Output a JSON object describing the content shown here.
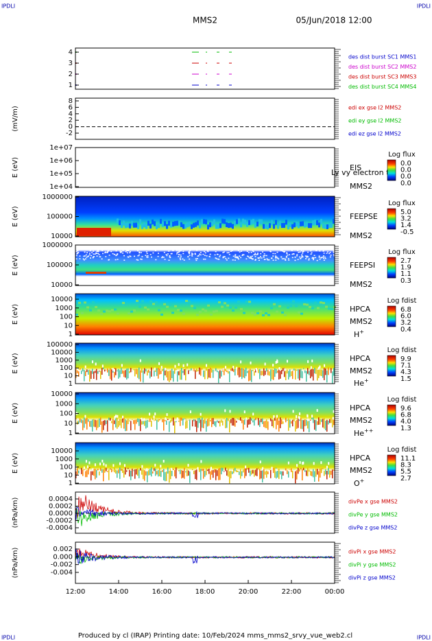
{
  "header": {
    "corner_left": "IPDLI",
    "corner_right": "IPDLI",
    "spacecraft": "MMS2",
    "datetime": "05/Jun/2018 12:00"
  },
  "panels": [
    {
      "yticks": [
        "4",
        "3",
        "2",
        "1"
      ],
      "legend": [
        {
          "text": "des dist burst SC1 MMS1",
          "color": "#0000cc"
        },
        {
          "text": "des dist burst SC2 MMS2",
          "color": "#cc00cc"
        },
        {
          "text": "des dist burst SC3 MMS3",
          "color": "#cc0000"
        },
        {
          "text": "des dist burst SC4 MMS4",
          "color": "#00bb00"
        }
      ]
    },
    {
      "ylabel": "(mV/m)",
      "yticks": [
        "8",
        "6",
        "4",
        "2",
        "0",
        "-2"
      ],
      "legend": [
        {
          "text": "edi ex gse l2 MMS2",
          "color": "#cc0000"
        },
        {
          "text": "edi ey gse l2 MMS2",
          "color": "#00bb00"
        },
        {
          "text": "edi ez gse l2 MMS2",
          "color": "#0000cc"
        }
      ]
    },
    {
      "ylabel": "E (eV)",
      "yticks": [
        "1e+07",
        "1e+06",
        "1e+05",
        "1e+04"
      ],
      "labels": [
        "EIS",
        "MMS2"
      ],
      "overlay": "Ly vy electron to",
      "colorbar": {
        "title": "Log flux",
        "ticks": [
          "0.0",
          "0.0",
          "0.0",
          "0.0"
        ]
      }
    },
    {
      "ylabel": "E (eV)",
      "yticks": [
        "1000000",
        "100000",
        "10000"
      ],
      "labels": [
        "FEEPSE",
        "MMS2"
      ],
      "colorbar": {
        "title": "Log flux",
        "ticks": [
          "5.0",
          "3.2",
          "1.4",
          "-0.5"
        ]
      }
    },
    {
      "ylabel": "E (eV)",
      "yticks": [
        "1000000",
        "100000",
        "10000"
      ],
      "labels": [
        "FEEPSI",
        "MMS2"
      ],
      "colorbar": {
        "title": "Log flux",
        "ticks": [
          "2.7",
          "1.9",
          "1.1",
          "0.3"
        ]
      }
    },
    {
      "ylabel": "E (eV)",
      "yticks": [
        "10000",
        "1000",
        "100",
        "10",
        "1"
      ],
      "labels": [
        "HPCA",
        "MMS2"
      ],
      "species": [
        "H",
        "+"
      ],
      "colorbar": {
        "title": "Log fdist",
        "ticks": [
          "6.8",
          "6.0",
          "3.2",
          "0.4"
        ]
      }
    },
    {
      "ylabel": "E (eV)",
      "yticks": [
        "100000",
        "10000",
        "1000",
        "100",
        "10",
        "1"
      ],
      "labels": [
        "HPCA",
        "MMS2"
      ],
      "species": [
        "He",
        "+"
      ],
      "colorbar": {
        "title": "Log fdist",
        "ticks": [
          "9.9",
          "7.1",
          "4.3",
          "1.5"
        ]
      }
    },
    {
      "ylabel": "E (eV)",
      "yticks": [
        "10000",
        "1000",
        "100",
        "10",
        "1"
      ],
      "labels": [
        "HPCA",
        "MMS2"
      ],
      "species": [
        "He",
        "++"
      ],
      "colorbar": {
        "title": "Log fdist",
        "ticks": [
          "9.6",
          "6.8",
          "4.0",
          "1.3"
        ]
      }
    },
    {
      "ylabel": "E (eV)",
      "yticks": [
        "10000",
        "1000",
        "100",
        "10",
        "1"
      ],
      "labels": [
        "HPCA",
        "MMS2"
      ],
      "species": [
        "O",
        "+"
      ],
      "colorbar": {
        "title": "Log fdist",
        "ticks": [
          "11.1",
          "8.3",
          "5.5",
          "2.7"
        ]
      }
    },
    {
      "ylabel": "(nPa/km)",
      "yticks": [
        "0.0004",
        "0.0002",
        "0.0000",
        "-0.0002",
        "-0.0004"
      ],
      "legend": [
        {
          "text": "divPe x gse MMS2",
          "color": "#cc0000"
        },
        {
          "text": "divPe y gse MMS2",
          "color": "#00bb00"
        },
        {
          "text": "divPe z gse MMS2",
          "color": "#0000cc"
        }
      ]
    },
    {
      "ylabel": "(nPa/km)",
      "yticks": [
        "0.002",
        "0.000",
        "-0.002",
        "-0.004"
      ],
      "legend": [
        {
          "text": "divPi x gse MMS2",
          "color": "#cc0000"
        },
        {
          "text": "divPi y gse MMS2",
          "color": "#00bb00"
        },
        {
          "text": "divPi z gse MMS2",
          "color": "#0000cc"
        }
      ]
    }
  ],
  "xticks": [
    "12:00",
    "14:00",
    "16:00",
    "18:00",
    "20:00",
    "22:00",
    "00:00"
  ],
  "footer": "Produced by cl (IRAP)   Printing date: 10/Feb/2024   mms_mms2_srvy_vue_web2.cl"
}
